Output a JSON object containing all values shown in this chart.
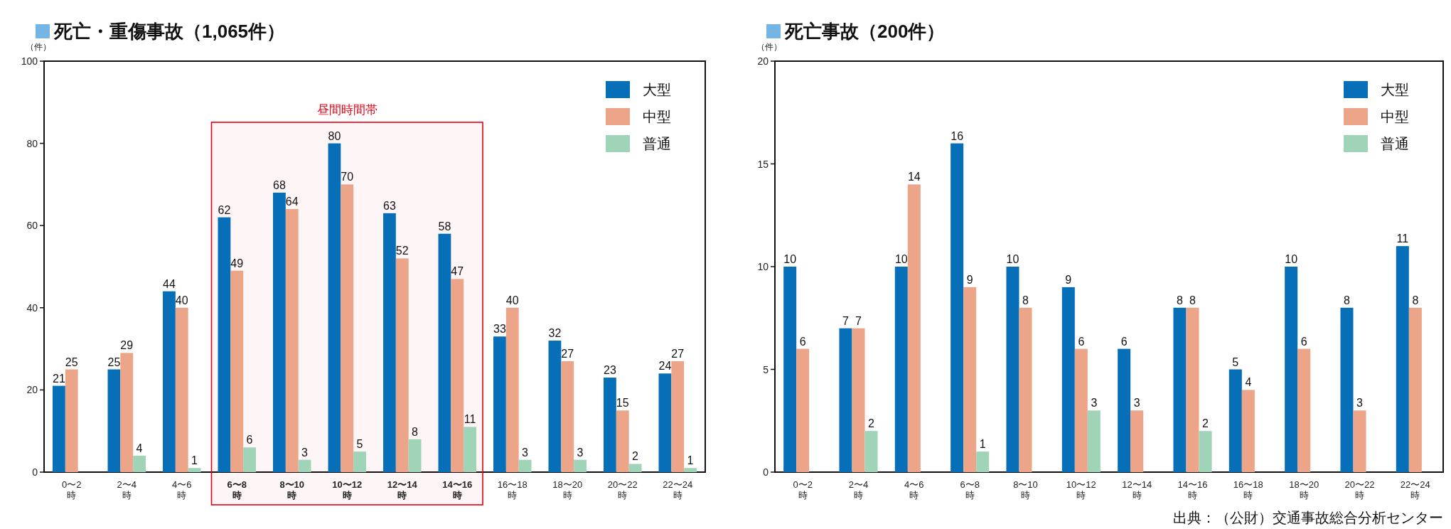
{
  "chart_data": [
    {
      "type": "bar",
      "title": "死亡・重傷事故（1,065件）",
      "ylabel": "（件）",
      "categories": [
        "0〜2\n時",
        "2〜4\n時",
        "4〜6\n時",
        "6〜8\n時",
        "8〜10\n時",
        "10〜12\n時",
        "12〜14\n時",
        "14〜16\n時",
        "16〜18\n時",
        "18〜20\n時",
        "20〜22\n時",
        "22〜24\n時"
      ],
      "series": [
        {
          "name": "大型",
          "color": "#066fb8",
          "values": [
            21,
            25,
            44,
            62,
            68,
            80,
            63,
            58,
            33,
            32,
            23,
            24
          ]
        },
        {
          "name": "中型",
          "color": "#eca588",
          "values": [
            25,
            29,
            40,
            49,
            64,
            70,
            52,
            47,
            40,
            27,
            15,
            27
          ]
        },
        {
          "name": "普通",
          "color": "#a0d4b9",
          "values": [
            null,
            4,
            1,
            6,
            3,
            5,
            8,
            11,
            3,
            3,
            2,
            1
          ]
        }
      ],
      "ylim": [
        0,
        100
      ],
      "yticks": [
        0,
        20,
        40,
        60,
        80,
        100
      ],
      "data_labels": true,
      "legend": "top right",
      "bands": [
        {
          "axis": "x",
          "from": "6〜8\n時",
          "to": "14〜16\n時",
          "label": "昼間時間帯",
          "color": "#e60012"
        }
      ]
    },
    {
      "type": "bar",
      "title": "死亡事故（200件）",
      "ylabel": "（件）",
      "categories": [
        "0〜2\n時",
        "2〜4\n時",
        "4〜6\n時",
        "6〜8\n時",
        "8〜10\n時",
        "10〜12\n時",
        "12〜14\n時",
        "14〜16\n時",
        "16〜18\n時",
        "18〜20\n時",
        "20〜22\n時",
        "22〜24\n時"
      ],
      "series": [
        {
          "name": "大型",
          "color": "#066fb8",
          "values": [
            10,
            7,
            10,
            16,
            10,
            9,
            6,
            8,
            5,
            10,
            8,
            11
          ]
        },
        {
          "name": "中型",
          "color": "#eca588",
          "values": [
            6,
            7,
            14,
            9,
            8,
            6,
            3,
            8,
            4,
            6,
            3,
            8
          ]
        },
        {
          "name": "普通",
          "color": "#a0d4b9",
          "values": [
            null,
            2,
            null,
            1,
            null,
            3,
            null,
            2,
            null,
            null,
            null,
            null
          ]
        }
      ],
      "ylim": [
        0,
        20
      ],
      "yticks": [
        0,
        5,
        10,
        15,
        20
      ],
      "data_labels": true,
      "legend": "top right",
      "annotations": [
        "出典：（公財）交通事故総合分析センター"
      ]
    }
  ]
}
